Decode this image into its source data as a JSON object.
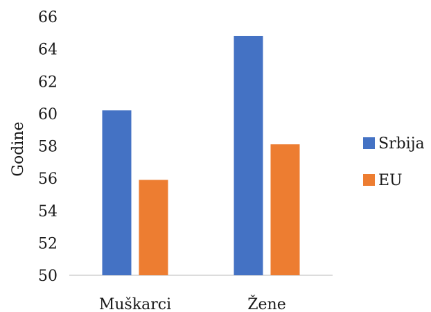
{
  "chart_data": {
    "type": "bar",
    "categories": [
      "Muškarci",
      "Žene"
    ],
    "series": [
      {
        "name": "Srbija",
        "values": [
          60.2,
          64.8
        ],
        "color": "#4472C4"
      },
      {
        "name": "EU",
        "values": [
          55.9,
          58.1
        ],
        "color": "#ED7D31"
      }
    ],
    "ylabel": "Godine",
    "ylim": [
      50,
      66
    ],
    "yticks": [
      "50",
      "52",
      "54",
      "56",
      "58",
      "60",
      "62",
      "64",
      "66"
    ],
    "legend_position": "right",
    "grid": false
  }
}
